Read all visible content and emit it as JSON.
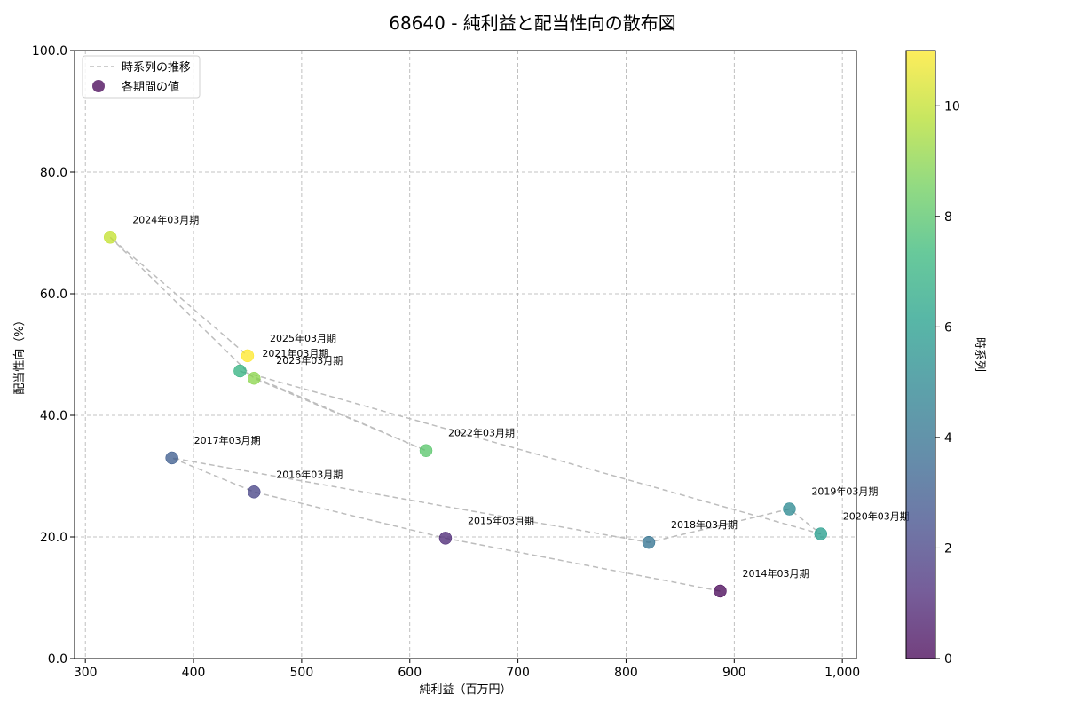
{
  "chart_data": {
    "type": "scatter",
    "title": "68640 - 純利益と配当性向の散布図",
    "xlabel": "純利益（百万円）",
    "ylabel": "配当性向（%）",
    "xlim": [
      290,
      1013
    ],
    "ylim": [
      0,
      100
    ],
    "x_ticks": [
      300,
      400,
      500,
      600,
      700,
      800,
      900,
      1000
    ],
    "x_tick_labels": [
      "300",
      "400",
      "500",
      "600",
      "700",
      "800",
      "900",
      "1,000"
    ],
    "y_ticks": [
      0,
      20,
      40,
      60,
      80,
      100
    ],
    "y_tick_labels": [
      "0.0",
      "20.0",
      "40.0",
      "60.0",
      "80.0",
      "100.0"
    ],
    "grid": true,
    "legend_position": "top-left",
    "legend": {
      "line_label": "時系列の推移",
      "marker_label": "各期間の値"
    },
    "colorbar": {
      "label": "時系列",
      "min": 0,
      "max": 11,
      "ticks": [
        0,
        2,
        4,
        6,
        8,
        10
      ],
      "tick_labels": [
        "0",
        "2",
        "4",
        "6",
        "8",
        "10"
      ],
      "colormap": "viridis"
    },
    "points": [
      {
        "label": "2014年03月期",
        "x": 887,
        "y": 11.1,
        "t": 0
      },
      {
        "label": "2015年03月期",
        "x": 633,
        "y": 19.8,
        "t": 1
      },
      {
        "label": "2016年03月期",
        "x": 456,
        "y": 27.4,
        "t": 2
      },
      {
        "label": "2017年03月期",
        "x": 380,
        "y": 33.0,
        "t": 3
      },
      {
        "label": "2018年03月期",
        "x": 821,
        "y": 19.1,
        "t": 4
      },
      {
        "label": "2019年03月期",
        "x": 951,
        "y": 24.6,
        "t": 5
      },
      {
        "label": "2020年03月期",
        "x": 980,
        "y": 20.5,
        "t": 6
      },
      {
        "label": "2021年03月期",
        "x": 443,
        "y": 47.3,
        "t": 7
      },
      {
        "label": "2022年03月期",
        "x": 615,
        "y": 34.2,
        "t": 8
      },
      {
        "label": "2023年03月期",
        "x": 456,
        "y": 46.1,
        "t": 9
      },
      {
        "label": "2024年03月期",
        "x": 323,
        "y": 69.3,
        "t": 10
      },
      {
        "label": "2025年03月期",
        "x": 450,
        "y": 49.8,
        "t": 11
      }
    ],
    "line_color": "#bdbdbd"
  }
}
